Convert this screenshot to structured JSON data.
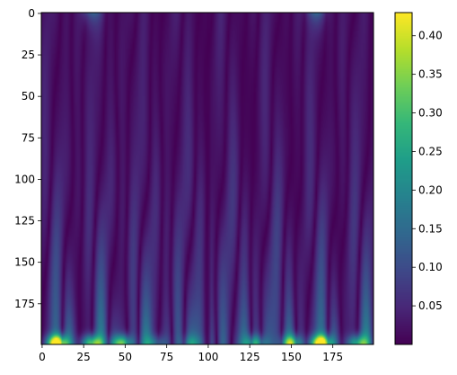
{
  "chart_data": {
    "type": "heatmap",
    "title": "",
    "xlabel": "",
    "ylabel": "",
    "grid": false,
    "colormap": "viridis",
    "shape": [
      200,
      200
    ],
    "xlim": [
      -0.5,
      199.5
    ],
    "ylim": [
      199.5,
      -0.5
    ],
    "y_axis_inverted": true,
    "x_ticks": [
      0,
      25,
      50,
      75,
      100,
      125,
      150,
      175
    ],
    "x_tick_labels": [
      "0",
      "25",
      "50",
      "75",
      "100",
      "125",
      "150",
      "175"
    ],
    "y_ticks": [
      0,
      25,
      50,
      75,
      100,
      125,
      150,
      175
    ],
    "y_tick_labels": [
      "0",
      "25",
      "50",
      "75",
      "100",
      "125",
      "150",
      "175"
    ],
    "colorbar": {
      "vmin": 0.0,
      "vmax": 0.43,
      "ticks": [
        0.05,
        0.1,
        0.15,
        0.2,
        0.25,
        0.3,
        0.35,
        0.4
      ],
      "tick_labels": [
        "0.05",
        "0.10",
        "0.15",
        "0.20",
        "0.25",
        "0.30",
        "0.35",
        "0.40"
      ]
    },
    "notable_features": {
      "max_value": 0.43,
      "max_locations": [
        [
          9,
          199
        ],
        [
          168,
          199
        ]
      ],
      "bright_columns": [
        8,
        30,
        48,
        128,
        150,
        168,
        190
      ],
      "dark_vertical_seam_x": 100
    }
  },
  "colors": {
    "viridis": [
      "#440154",
      "#482878",
      "#3e4989",
      "#31688e",
      "#26828e",
      "#1f9e89",
      "#35b779",
      "#6ece58",
      "#b5de2b",
      "#fde725"
    ]
  }
}
